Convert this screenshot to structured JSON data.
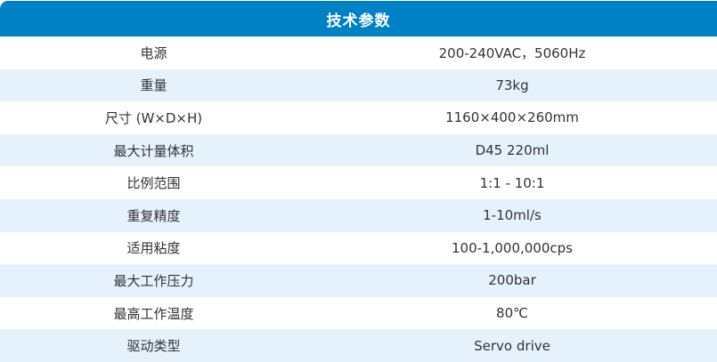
{
  "page": {
    "title": "技术参数"
  },
  "colors": {
    "header_bg": "#0081C6",
    "header_text": "#FFFFFF",
    "row_bg": "#FFFFFF",
    "row_alt_bg": "#E5F2FC",
    "cell_text": "#333333"
  },
  "table": {
    "rows": [
      {
        "label": "电源",
        "value": "200-240VAC，5060Hz"
      },
      {
        "label": "重量",
        "value": "73kg"
      },
      {
        "label": "尺寸 (W×D×H)",
        "value": "1160×400×260mm"
      },
      {
        "label": "最大计量体积",
        "value": "D45 220ml"
      },
      {
        "label": "比例范围",
        "value": "1:1 - 10:1"
      },
      {
        "label": "重复精度",
        "value": "1-10ml/s"
      },
      {
        "label": "适用粘度",
        "value": "100-1,000,000cps"
      },
      {
        "label": "最大工作压力",
        "value": "200bar"
      },
      {
        "label": "最高工作温度",
        "value": "80℃"
      },
      {
        "label": "驱动类型",
        "value": "Servo drive"
      }
    ]
  }
}
